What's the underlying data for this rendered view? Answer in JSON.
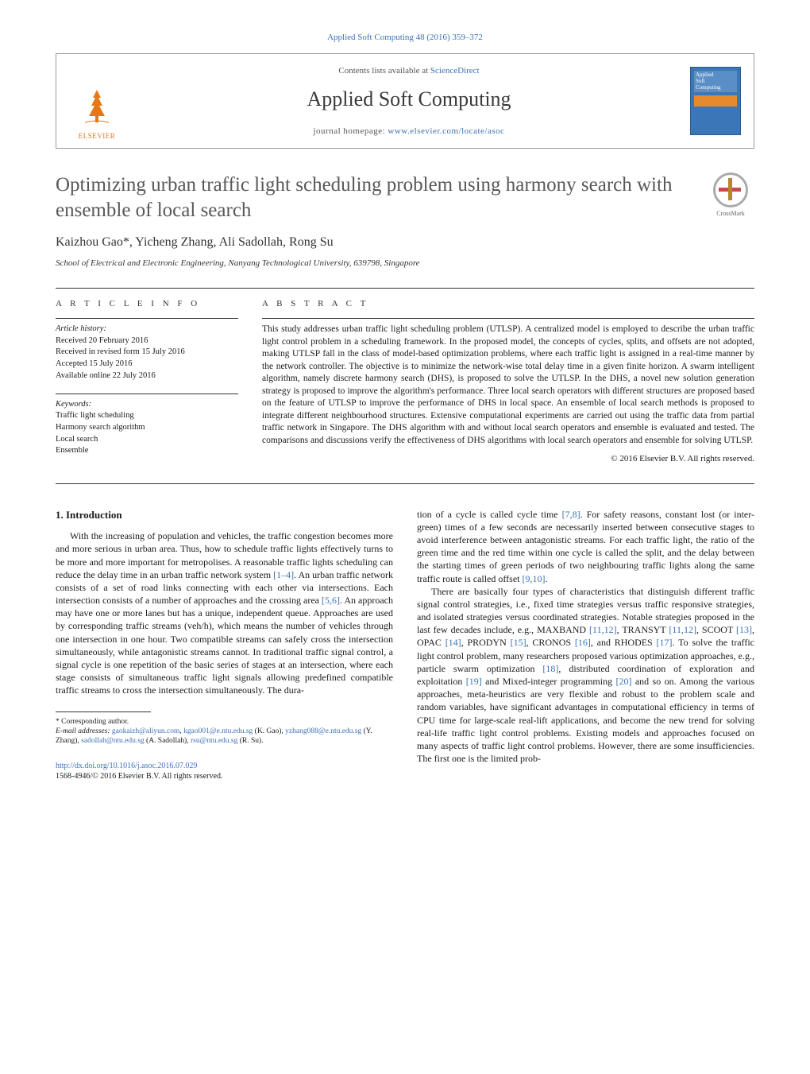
{
  "journal_ref": "Applied Soft Computing 48 (2016) 359–372",
  "header": {
    "contents_prefix": "Contents lists available at ",
    "contents_link": "ScienceDirect",
    "journal_title": "Applied Soft Computing",
    "homepage_prefix": "journal homepage: ",
    "homepage_url": "www.elsevier.com/locate/asoc",
    "publisher": "ELSEVIER",
    "cover_text_1": "Applied",
    "cover_text_2": "Soft",
    "cover_text_3": "Computing"
  },
  "crossmark_label": "CrossMark",
  "title": "Optimizing urban traffic light scheduling problem using harmony search with ensemble of local search",
  "authors_html": "Kaizhou Gao*, Yicheng Zhang, Ali Sadollah, Rong Su",
  "authors": {
    "a1": "Kaizhou Gao",
    "star": "*",
    "sep1": ", ",
    "a2": "Yicheng Zhang",
    "sep2": ", ",
    "a3": "Ali Sadollah",
    "sep3": ", ",
    "a4": "Rong Su"
  },
  "affiliation": "School of Electrical and Electronic Engineering, Nanyang Technological University, 639798, Singapore",
  "info": {
    "heading": "a r t i c l e   i n f o",
    "history_label": "Article history:",
    "received": "Received 20 February 2016",
    "revised": "Received in revised form 15 July 2016",
    "accepted": "Accepted 15 July 2016",
    "online": "Available online 22 July 2016",
    "keywords_label": "Keywords:",
    "kw1": "Traffic light scheduling",
    "kw2": "Harmony search algorithm",
    "kw3": "Local search",
    "kw4": "Ensemble"
  },
  "abstract": {
    "heading": "a b s t r a c t",
    "text": "This study addresses urban traffic light scheduling problem (UTLSP). A centralized model is employed to describe the urban traffic light control problem in a scheduling framework. In the proposed model, the concepts of cycles, splits, and offsets are not adopted, making UTLSP fall in the class of model-based optimization problems, where each traffic light is assigned in a real-time manner by the network controller. The objective is to minimize the network-wise total delay time in a given finite horizon. A swarm intelligent algorithm, namely discrete harmony search (DHS), is proposed to solve the UTLSP. In the DHS, a novel new solution generation strategy is proposed to improve the algorithm's performance. Three local search operators with different structures are proposed based on the feature of UTLSP to improve the performance of DHS in local space. An ensemble of local search methods is proposed to integrate different neighbourhood structures. Extensive computational experiments are carried out using the traffic data from partial traffic network in Singapore. The DHS algorithm with and without local search operators and ensemble is evaluated and tested. The comparisons and discussions verify the effectiveness of DHS algorithms with local search operators and ensemble for solving UTLSP.",
    "copyright": "© 2016 Elsevier B.V. All rights reserved."
  },
  "section1_heading": "1.  Introduction",
  "col1_para": "With the increasing of population and vehicles, the traffic congestion becomes more and more serious in urban area. Thus, how to schedule traffic lights effectively turns to be more and more important for metropolises. A reasonable traffic lights scheduling can reduce the delay time in an urban traffic network system [1–4]. An urban traffic network consists of a set of road links connecting with each other via intersections. Each intersection consists of a number of approaches and the crossing area [5,6]. An approach may have one or more lanes but has a unique, independent queue. Approaches are used by corresponding traffic streams (veh/h), which means the number of vehicles through one intersection in one hour. Two compatible streams can safely cross the intersection simultaneously, while antagonistic streams cannot. In traditional traffic signal control, a signal cycle is one repetition of the basic series of stages at an intersection, where each stage consists of simultaneous traffic light signals allowing predefined compatible traffic streams to cross the intersection simultaneously. The dura-",
  "col1_refs": {
    "r14": "[1–4]",
    "r56": "[5,6]"
  },
  "col2_para1": "tion of a cycle is called cycle time [7,8]. For safety reasons, constant lost (or inter-green) times of a few seconds are necessarily inserted between consecutive stages to avoid interference between antagonistic streams. For each traffic light, the ratio of the green time and the red time within one cycle is called the split, and the delay between the starting times of green periods of two neighbouring traffic lights along the same traffic route is called offset [9,10].",
  "col2_para2": "There are basically four types of characteristics that distinguish different traffic signal control strategies, i.e., fixed time strategies versus traffic responsive strategies, and isolated strategies versus coordinated strategies. Notable strategies proposed in the last few decades include, e.g., MAXBAND [11,12], TRANSYT [11,12], SCOOT [13], OPAC [14], PRODYN [15], CRONOS [16], and RHODES [17]. To solve the traffic light control problem, many researchers proposed various optimization approaches, e.g., particle swarm optimization [18], distributed coordination of exploration and exploitation [19] and Mixed-integer programming [20] and so on. Among the various approaches, meta-heuristics are very flexible and robust to the problem scale and random variables, have significant advantages in computational efficiency in terms of CPU time for large-scale real-lift applications, and become the new trend for solving real-life traffic light control problems. Existing models and approaches focused on many aspects of traffic light control problems. However, there are some insufficiencies. The first one is the limited prob-",
  "col2_refs": {
    "r78": "[7,8]",
    "r910": "[9,10]",
    "r1112a": "[11,12]",
    "r1112b": "[11,12]",
    "r13": "[13]",
    "r14": "[14]",
    "r15": "[15]",
    "r16": "[16]",
    "r17": "[17]",
    "r18": "[18]",
    "r19": "[19]",
    "r20": "[20]"
  },
  "footnotes": {
    "corr": "* Corresponding author.",
    "email_label": "E-mail addresses: ",
    "e1": "gaokaizh@aliyun.com",
    "e1b": "kgao001@e.ntu.edu.sg",
    "n1": " (K. Gao), ",
    "e2": "yzhang088@e.ntu.edu.sg",
    "n2": " (Y. Zhang), ",
    "e3": "sadollah@ntu.edu.sg",
    "n3": " (A. Sadollah), ",
    "e4": "rsu@ntu.edu.sg",
    "n4": " (R. Su)."
  },
  "doi": {
    "url": "http://dx.doi.org/10.1016/j.asoc.2016.07.029",
    "issn_line": "1568-4946/© 2016 Elsevier B.V. All rights reserved."
  },
  "colors": {
    "link": "#3b72b5",
    "brand_orange": "#e67817",
    "cover_blue": "#3b76b8",
    "cover_band": "#e68a2e",
    "title_gray": "#585858",
    "text": "#1a1a1a"
  },
  "typography": {
    "body_pt": 12,
    "title_pt": 25,
    "journal_title_pt": 26,
    "abstract_pt": 11.5,
    "footnote_pt": 9.5
  }
}
